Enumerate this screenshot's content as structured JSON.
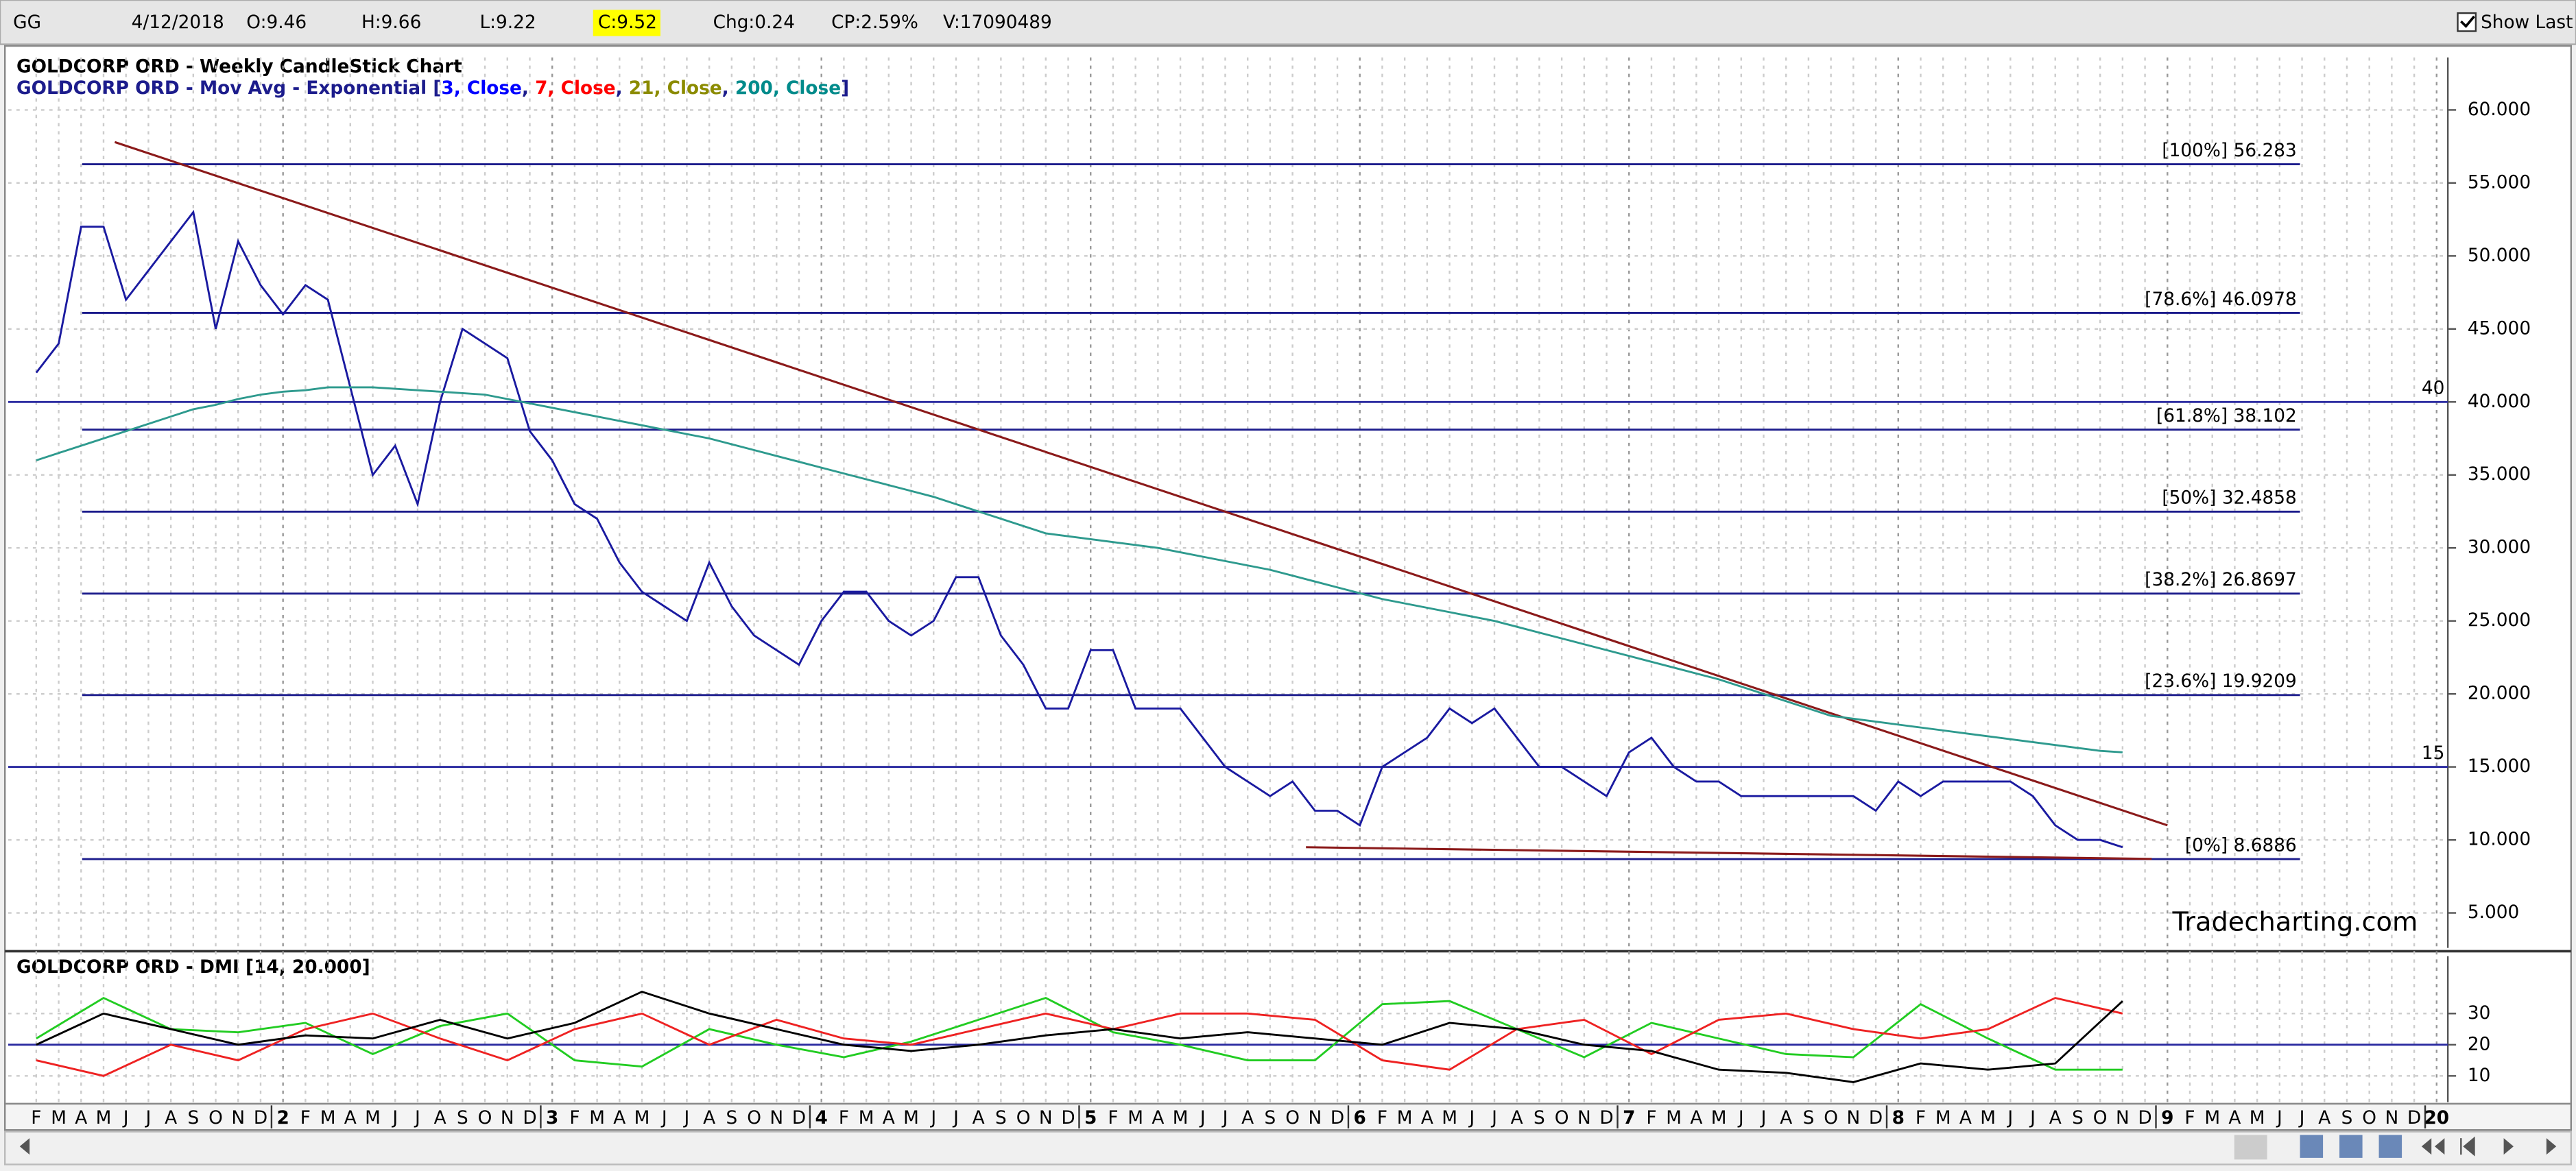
{
  "header": {
    "symbol": "GG",
    "date": "4/12/2018",
    "open": "O:9.46",
    "high": "H:9.66",
    "low": "L:9.22",
    "close": "C:9.52",
    "change": "Chg:0.24",
    "change_pct": "CP:2.59%",
    "volume": "V:17090489",
    "show_last": "Show Last"
  },
  "chart_data": [
    {
      "type": "line",
      "title": "GOLDCORP ORD - Weekly CandleStick Chart",
      "legend_parts": [
        {
          "text": "GOLDCORP ORD - Mov Avg - Exponential [",
          "color": "#1c1c8c"
        },
        {
          "text": "3, Close",
          "color": "#0000ff"
        },
        {
          "text": ", ",
          "color": "#1c1c8c"
        },
        {
          "text": "7, Close",
          "color": "#ff0000"
        },
        {
          "text": ", ",
          "color": "#1c1c8c"
        },
        {
          "text": "21, Close",
          "color": "#8b8b00"
        },
        {
          "text": ", ",
          "color": "#1c1c8c"
        },
        {
          "text": "200, Close",
          "color": "#008b8b"
        },
        {
          "text": "]",
          "color": "#1c1c8c"
        }
      ],
      "categories": [
        "F",
        "M",
        "A",
        "M",
        "J",
        "J",
        "A",
        "S",
        "O",
        "N",
        "D",
        "2",
        "F",
        "M",
        "A",
        "M",
        "J",
        "J",
        "A",
        "S",
        "O",
        "N",
        "D",
        "3",
        "F",
        "M",
        "A",
        "M",
        "J",
        "J",
        "A",
        "S",
        "O",
        "N",
        "D",
        "4",
        "F",
        "M",
        "A",
        "M",
        "J",
        "J",
        "A",
        "S",
        "O",
        "N",
        "D",
        "5",
        "F",
        "M",
        "A",
        "M",
        "J",
        "J",
        "A",
        "S",
        "O",
        "N",
        "D",
        "6",
        "F",
        "M",
        "A",
        "M",
        "J",
        "J",
        "A",
        "S",
        "O",
        "N",
        "D",
        "7",
        "F",
        "M",
        "A",
        "M",
        "J",
        "J",
        "A",
        "S",
        "O",
        "N",
        "D",
        "8",
        "F",
        "M",
        "A",
        "M",
        "J",
        "J",
        "A",
        "S",
        "O",
        "N",
        "D",
        "9",
        "F",
        "M",
        "A",
        "M",
        "J",
        "J",
        "A",
        "S",
        "O",
        "N",
        "D",
        "20"
      ],
      "series": [
        {
          "color": "#1a1aa0",
          "values": [
            42,
            44,
            52,
            52,
            47,
            49,
            51,
            53,
            45,
            51,
            48,
            46,
            48,
            47,
            41,
            35,
            37,
            33,
            40,
            45,
            44,
            43,
            38,
            36,
            33,
            32,
            29,
            27,
            26,
            25,
            29,
            26,
            24,
            23,
            22,
            25,
            27,
            27,
            25,
            24,
            25,
            28,
            28,
            24,
            22,
            19,
            19,
            23,
            23,
            19,
            19,
            19,
            17,
            15,
            14,
            13,
            14,
            12,
            12,
            11,
            15,
            16,
            17,
            19,
            18,
            19,
            17,
            15,
            15,
            14,
            13,
            16,
            17,
            15,
            14,
            14,
            13,
            13,
            13,
            13,
            13,
            13,
            12,
            14,
            13,
            14,
            14,
            14,
            14,
            13,
            11,
            10,
            10,
            9.5,
            null,
            null,
            null,
            null,
            null,
            null,
            null,
            null,
            null,
            null,
            null,
            null,
            null,
            null
          ]
        },
        {
          "color": "#2e9a8e",
          "values": [
            36,
            36.5,
            37,
            37.5,
            38,
            38.5,
            39,
            39.5,
            39.8,
            40.2,
            40.5,
            40.7,
            40.8,
            41,
            41,
            41,
            40.9,
            40.8,
            40.7,
            40.6,
            40.5,
            40.2,
            39.9,
            39.6,
            39.3,
            39,
            38.7,
            38.4,
            38.1,
            37.8,
            37.5,
            37.1,
            36.7,
            36.3,
            35.9,
            35.5,
            35.1,
            34.7,
            34.3,
            33.9,
            33.5,
            33,
            32.5,
            32,
            31.5,
            31,
            30.8,
            30.6,
            30.4,
            30.2,
            30,
            29.7,
            29.4,
            29.1,
            28.8,
            28.5,
            28.1,
            27.7,
            27.3,
            26.9,
            26.5,
            26.2,
            25.9,
            25.6,
            25.3,
            25,
            24.6,
            24.2,
            23.8,
            23.4,
            23,
            22.6,
            22.2,
            21.8,
            21.4,
            21,
            20.5,
            20,
            19.5,
            19,
            18.5,
            18.3,
            18.1,
            17.9,
            17.7,
            17.5,
            17.3,
            17.1,
            16.9,
            16.7,
            16.5,
            16.3,
            16.1,
            16,
            null,
            null,
            null,
            null,
            null,
            null,
            null,
            null,
            null,
            null,
            null,
            null,
            null,
            null
          ]
        }
      ],
      "levels": [
        {
          "value": 56.283,
          "label": "[100%] 56.283"
        },
        {
          "value": 46.0978,
          "label": "[78.6%] 46.0978"
        },
        {
          "value": 38.102,
          "label": "[61.8%] 38.102"
        },
        {
          "value": 32.4858,
          "label": "[50%] 32.4858"
        },
        {
          "value": 26.8697,
          "label": "[38.2%] 26.8697"
        },
        {
          "value": 19.9209,
          "label": "[23.6%] 19.9209"
        },
        {
          "value": 8.6886,
          "label": "[0%] 8.6886"
        }
      ],
      "hlines": [
        40,
        15
      ],
      "trendlines": [
        {
          "x": [
            3.5,
            95
          ],
          "y": [
            57.8,
            11
          ],
          "color": "#8b1a1a"
        },
        {
          "x": [
            56.6,
            94.3
          ],
          "y": [
            9.5,
            8.7
          ],
          "color": "#8b1a1a"
        }
      ],
      "xlim": [
        -1.25,
        107.5
      ],
      "ylim": [
        2.6,
        63.6
      ],
      "yticks": [
        {
          "value": 60,
          "label": "60.000"
        },
        {
          "value": 55,
          "label": "55.000"
        },
        {
          "value": 50,
          "label": "50.000"
        },
        {
          "value": 45,
          "label": "45.000"
        },
        {
          "value": 40,
          "label": "40.000"
        },
        {
          "value": 35,
          "label": "35.000"
        },
        {
          "value": 30,
          "label": "30.000"
        },
        {
          "value": 25,
          "label": "25.000"
        },
        {
          "value": 20,
          "label": "20.000"
        },
        {
          "value": 15,
          "label": "15.000"
        },
        {
          "value": 10,
          "label": "10.000"
        },
        {
          "value": 5,
          "label": "5.000"
        }
      ],
      "grid": true,
      "watermark": "Tradecharting.com"
    },
    {
      "type": "line",
      "title": "GOLDCORP ORD - DMI [14, 20.000]",
      "x": [
        0,
        3,
        6,
        9,
        12,
        15,
        18,
        21,
        24,
        27,
        30,
        33,
        36,
        39,
        42,
        45,
        48,
        51,
        54,
        57,
        60,
        63,
        66,
        69,
        72,
        75,
        78,
        81,
        84,
        87,
        90,
        93
      ],
      "series": [
        {
          "color": "#22cc22",
          "values": [
            22,
            35,
            25,
            24,
            27,
            17,
            26,
            30,
            15,
            13,
            25,
            20,
            16,
            21,
            28,
            35,
            24,
            20,
            15,
            15,
            33,
            34,
            25,
            16,
            27,
            22,
            17,
            16,
            33,
            22,
            12,
            12
          ]
        },
        {
          "color": "#ee2222",
          "values": [
            15,
            10,
            20,
            15,
            25,
            30,
            22,
            15,
            25,
            30,
            20,
            28,
            22,
            20,
            25,
            30,
            25,
            30,
            30,
            28,
            15,
            12,
            25,
            28,
            17,
            28,
            30,
            25,
            22,
            25,
            35,
            30
          ]
        },
        {
          "color": "#000000",
          "values": [
            20,
            30,
            25,
            20,
            23,
            22,
            28,
            22,
            27,
            37,
            30,
            25,
            20,
            18,
            20,
            23,
            25,
            22,
            24,
            22,
            20,
            27,
            25,
            20,
            18,
            12,
            11,
            8,
            14,
            12,
            14,
            34
          ]
        }
      ],
      "hlines": [
        20
      ],
      "xlim": [
        -1.25,
        107.5
      ],
      "ylim": [
        1.6,
        48.4
      ],
      "yticks": [
        10,
        20,
        30
      ],
      "grid": true
    }
  ]
}
